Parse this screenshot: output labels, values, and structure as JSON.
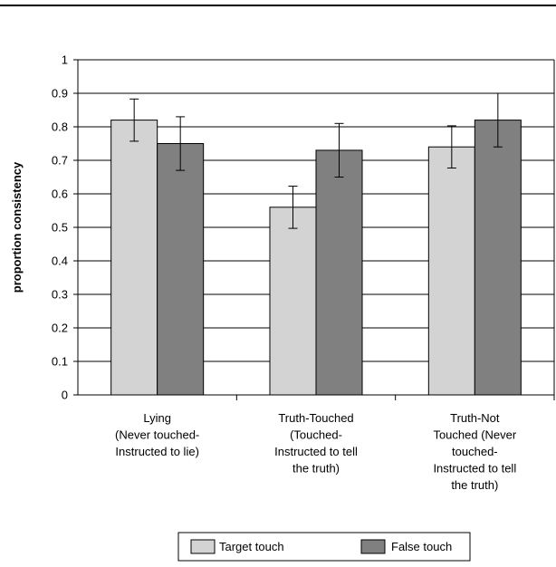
{
  "chart_data": {
    "type": "bar",
    "title": "",
    "xlabel": "",
    "ylabel": "proportion consistency",
    "ylim": [
      0,
      1
    ],
    "yticks": [
      "0",
      "0.1",
      "0.2",
      "0.3",
      "0.4",
      "0.5",
      "0.6",
      "0.7",
      "0.8",
      "0.9",
      "1"
    ],
    "grid": true,
    "legend_position": "bottom",
    "categories": [
      [
        "Lying",
        "(Never touched-",
        "Instructed to lie)"
      ],
      [
        "Truth-Touched",
        "(Touched-",
        "Instructed to tell",
        "the truth)"
      ],
      [
        "Truth-Not",
        "Touched (Never",
        "touched-",
        "Instructed to tell",
        "the truth)"
      ]
    ],
    "series": [
      {
        "name": "Target touch",
        "color": "#d3d3d3",
        "values": [
          0.82,
          0.56,
          0.74
        ],
        "error": [
          0.063,
          0.063,
          0.063
        ]
      },
      {
        "name": "False touch",
        "color": "#808080",
        "values": [
          0.75,
          0.73,
          0.82
        ],
        "error": [
          0.08,
          0.08,
          0.08
        ]
      }
    ]
  }
}
